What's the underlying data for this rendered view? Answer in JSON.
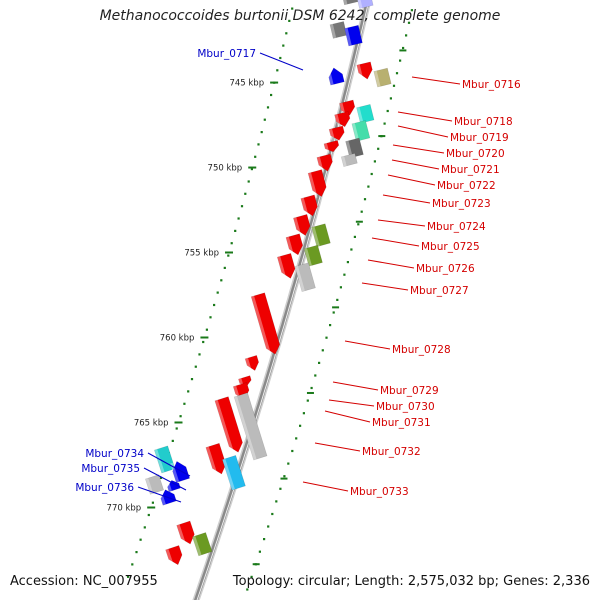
{
  "title": "Methanococcoides burtonii DSM 6242, complete genome",
  "footer": {
    "accession": "Accession: NC_007955",
    "topology": "Topology: circular; Length: 2,575,032 bp; Genes: 2,336"
  },
  "colors": {
    "forward_label": "#d40000",
    "reverse_label": "#0000c8",
    "backbone": "#8a8a8a",
    "tick": "#1a7a1a"
  },
  "scale_ticks": [
    {
      "label": "745 kbp",
      "kbp": 745
    },
    {
      "label": "750 kbp",
      "kbp": 750
    },
    {
      "label": "755 kbp",
      "kbp": 755
    },
    {
      "label": "760 kbp",
      "kbp": 760
    },
    {
      "label": "765 kbp",
      "kbp": 765
    },
    {
      "label": "770 kbp",
      "kbp": 770
    }
  ],
  "genes": [
    {
      "label": "Mbur_0716",
      "strand": "forward"
    },
    {
      "label": "Mbur_0717",
      "strand": "reverse"
    },
    {
      "label": "Mbur_0718",
      "strand": "forward"
    },
    {
      "label": "Mbur_0719",
      "strand": "forward"
    },
    {
      "label": "Mbur_0720",
      "strand": "forward"
    },
    {
      "label": "Mbur_0721",
      "strand": "forward"
    },
    {
      "label": "Mbur_0722",
      "strand": "forward"
    },
    {
      "label": "Mbur_0723",
      "strand": "forward"
    },
    {
      "label": "Mbur_0724",
      "strand": "forward"
    },
    {
      "label": "Mbur_0725",
      "strand": "forward"
    },
    {
      "label": "Mbur_0726",
      "strand": "forward"
    },
    {
      "label": "Mbur_0727",
      "strand": "forward"
    },
    {
      "label": "Mbur_0728",
      "strand": "forward"
    },
    {
      "label": "Mbur_0729",
      "strand": "forward"
    },
    {
      "label": "Mbur_0730",
      "strand": "forward"
    },
    {
      "label": "Mbur_0731",
      "strand": "forward"
    },
    {
      "label": "Mbur_0732",
      "strand": "forward"
    },
    {
      "label": "Mbur_0733",
      "strand": "forward"
    },
    {
      "label": "Mbur_0734",
      "strand": "reverse"
    },
    {
      "label": "Mbur_0735",
      "strand": "reverse"
    },
    {
      "label": "Mbur_0736",
      "strand": "reverse"
    }
  ]
}
